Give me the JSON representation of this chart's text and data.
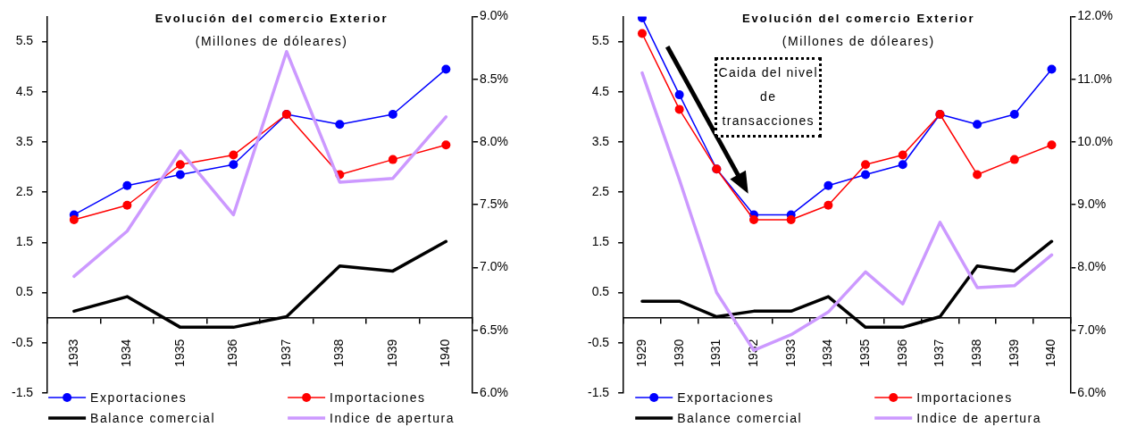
{
  "chart_data": [
    {
      "type": "line",
      "title": "Evolución del comercio Exterior",
      "subtitle": "(Millones de dóleares)",
      "categories": [
        "1933",
        "1934",
        "1935",
        "1936",
        "1937",
        "1938",
        "1939",
        "1940"
      ],
      "series": [
        {
          "name": "Exportaciones",
          "color": "#0000ff",
          "marker": "circle",
          "values": [
            2.05,
            2.63,
            2.85,
            3.05,
            4.05,
            3.85,
            4.05,
            4.95
          ]
        },
        {
          "name": "Importaciones",
          "color": "#ff0000",
          "marker": "circle",
          "values": [
            1.95,
            2.24,
            3.05,
            3.24,
            4.05,
            2.85,
            3.15,
            3.44
          ]
        },
        {
          "name": "Balance comercial",
          "color": "#000000",
          "marker": "none",
          "values": [
            0.13,
            0.42,
            -0.19,
            -0.19,
            0.02,
            1.03,
            0.93,
            1.52
          ]
        },
        {
          "name": "Indice de apertura",
          "color": "#cc99ff",
          "marker": "none",
          "axis": "y2",
          "values": [
            6.93,
            7.29,
            7.93,
            7.42,
            8.72,
            7.68,
            7.71,
            8.2
          ]
        }
      ],
      "ylim": [
        -1.5,
        6
      ],
      "yticks": [
        -1.5,
        -0.5,
        0.5,
        1.5,
        2.5,
        3.5,
        4.5,
        5.5
      ],
      "y2lim": [
        6,
        9
      ],
      "y2ticks": [
        {
          "value": 6,
          "label": "6.0%"
        },
        {
          "value": 6.5,
          "label": "6.5%"
        },
        {
          "value": 7,
          "label": "7.0%"
        },
        {
          "value": 7.5,
          "label": "7.5%"
        },
        {
          "value": 8,
          "label": "8.0%"
        },
        {
          "value": 8.5,
          "label": "8.5%"
        },
        {
          "value": 9,
          "label": "9.0%"
        }
      ],
      "legend": "bottom"
    },
    {
      "type": "line",
      "title": "Evolución del comercio Exterior",
      "subtitle": "(Millones de dóleares)",
      "categories": [
        "1929",
        "1930",
        "1931",
        "1932",
        "1933",
        "1934",
        "1935",
        "1936",
        "1937",
        "1938",
        "1939",
        "1940"
      ],
      "series": [
        {
          "name": "Exportaciones",
          "color": "#0000ff",
          "marker": "circle",
          "values": [
            5.97,
            4.44,
            2.96,
            2.05,
            2.05,
            2.63,
            2.85,
            3.05,
            4.05,
            3.85,
            4.05,
            4.95
          ]
        },
        {
          "name": "Importaciones",
          "color": "#ff0000",
          "marker": "circle",
          "values": [
            5.66,
            4.15,
            2.96,
            1.95,
            1.95,
            2.24,
            3.05,
            3.24,
            4.05,
            2.85,
            3.15,
            3.44
          ]
        },
        {
          "name": "Balance comercial",
          "color": "#000000",
          "marker": "none",
          "values": [
            0.33,
            0.33,
            0.02,
            0.13,
            0.13,
            0.42,
            -0.19,
            -0.19,
            0.02,
            1.03,
            0.93,
            1.52
          ]
        },
        {
          "name": "Indice de apertura",
          "color": "#cc99ff",
          "marker": "none",
          "axis": "y2",
          "values": [
            11.1,
            9.4,
            7.6,
            6.68,
            6.93,
            7.29,
            7.93,
            7.42,
            8.72,
            7.68,
            7.71,
            8.2
          ]
        }
      ],
      "ylim": [
        -1.5,
        6
      ],
      "yticks": [
        -1.5,
        -0.5,
        0.5,
        1.5,
        2.5,
        3.5,
        4.5,
        5.5
      ],
      "y2lim": [
        6,
        12
      ],
      "y2ticks": [
        {
          "value": 6,
          "label": "6.0%"
        },
        {
          "value": 7,
          "label": "7.0%"
        },
        {
          "value": 8,
          "label": "8.0%"
        },
        {
          "value": 9,
          "label": "9.0%"
        },
        {
          "value": 10,
          "label": "10.0%"
        },
        {
          "value": 11,
          "label": "11.0%"
        },
        {
          "value": 12,
          "label": "12.0%"
        }
      ],
      "legend": "bottom",
      "annotations": [
        "Caida del nivel de transacciones"
      ]
    }
  ]
}
